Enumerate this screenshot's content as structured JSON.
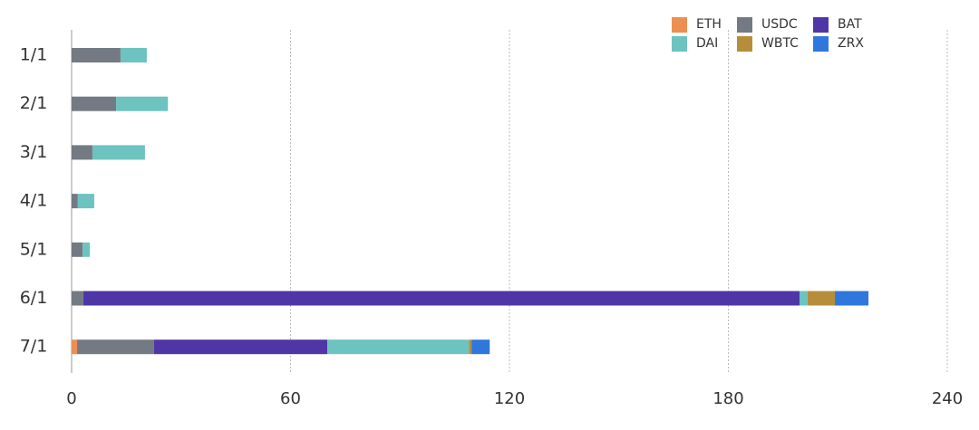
{
  "chart_data": {
    "type": "bar",
    "orientation": "horizontal",
    "stacked": true,
    "categories": [
      "1/1",
      "2/1",
      "3/1",
      "4/1",
      "5/1",
      "6/1",
      "7/1"
    ],
    "series": [
      {
        "name": "ETH",
        "color": "#ec8f52",
        "values": [
          0,
          0,
          0,
          0,
          0,
          0,
          1.5
        ]
      },
      {
        "name": "USDC",
        "color": "#737a83",
        "values": [
          13.4,
          12.2,
          5.7,
          1.7,
          3,
          3.2,
          21.1
        ]
      },
      {
        "name": "BAT",
        "color": "#4f36a7",
        "values": [
          0,
          0,
          0,
          0,
          0,
          196.3,
          47.5
        ]
      },
      {
        "name": "DAI",
        "color": "#6cc3bf",
        "values": [
          7.2,
          14.2,
          14.4,
          4.5,
          2,
          2.2,
          38.8
        ]
      },
      {
        "name": "WBTC",
        "color": "#b68e3b",
        "values": [
          0,
          0,
          0,
          0,
          0,
          7.5,
          0.7
        ]
      },
      {
        "name": "ZRX",
        "color": "#2f77dd",
        "values": [
          0,
          0,
          0,
          0,
          0,
          9.2,
          5
        ]
      }
    ],
    "xlim": [
      0,
      240
    ],
    "xticks": [
      0,
      60,
      120,
      180,
      240
    ],
    "grid": true,
    "legend": "top-right"
  }
}
